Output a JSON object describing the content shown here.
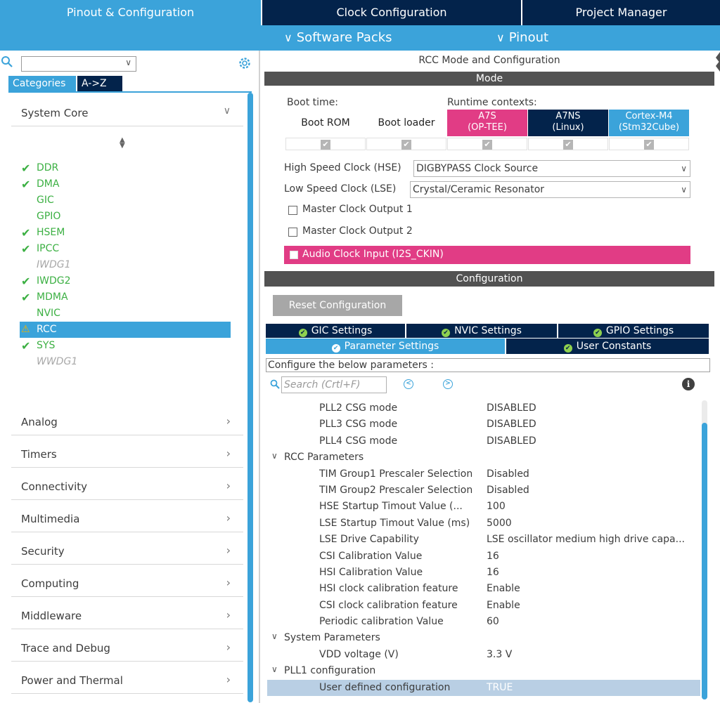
{
  "top_tabs": {
    "pinout": "Pinout & Configuration",
    "clock": "Clock Configuration",
    "project": "Project Manager"
  },
  "sub_menu": {
    "software_packs": "Software Packs",
    "pinout": "Pinout"
  },
  "sidebar": {
    "search": {
      "value": "",
      "placeholder": ""
    },
    "tabs": {
      "categories": "Categories",
      "az": "A->Z"
    },
    "system_core": {
      "label": "System Core",
      "items": [
        {
          "label": "DDR",
          "status": "ok"
        },
        {
          "label": "DMA",
          "status": "ok"
        },
        {
          "label": "GIC",
          "status": "none"
        },
        {
          "label": "GPIO",
          "status": "none"
        },
        {
          "label": "HSEM",
          "status": "ok"
        },
        {
          "label": "IPCC",
          "status": "ok"
        },
        {
          "label": "IWDG1",
          "status": "disabled"
        },
        {
          "label": "IWDG2",
          "status": "ok"
        },
        {
          "label": "MDMA",
          "status": "ok"
        },
        {
          "label": "NVIC",
          "status": "none"
        },
        {
          "label": "RCC",
          "status": "warning",
          "selected": true
        },
        {
          "label": "SYS",
          "status": "ok"
        },
        {
          "label": "WWDG1",
          "status": "disabled"
        }
      ]
    },
    "categories": [
      "Analog",
      "Timers",
      "Connectivity",
      "Multimedia",
      "Security",
      "Computing",
      "Middleware",
      "Trace and Debug",
      "Power and Thermal"
    ]
  },
  "mode": {
    "panel_title": "RCC Mode and Configuration",
    "section": "Mode",
    "boot_time_label": "Boot time:",
    "runtime_label": "Runtime contexts:",
    "contexts": [
      {
        "label": "Boot ROM",
        "sub": "",
        "color": "#ffffff"
      },
      {
        "label": "Boot loader",
        "sub": "",
        "color": "#ffffff"
      },
      {
        "label": "A7S",
        "sub": "(OP-TEE)",
        "color": "#e13c85"
      },
      {
        "label": "A7NS",
        "sub": "(Linux)",
        "color": "#03234b"
      },
      {
        "label": "Cortex-M4",
        "sub": "(Stm32Cube)",
        "color": "#3ba3da"
      }
    ],
    "hse_label": "High Speed Clock (HSE)",
    "hse_value": "DIGBYPASS Clock Source",
    "lse_label": "Low Speed Clock (LSE)",
    "lse_value": "Crystal/Ceramic Resonator",
    "mco1": "Master Clock Output 1",
    "mco2": "Master Clock Output 2",
    "audio": "Audio Clock Input (I2S_CKIN)"
  },
  "configuration": {
    "section": "Configuration",
    "reset_label": "Reset Configuration",
    "tabs_row1": [
      "GIC Settings",
      "NVIC Settings",
      "GPIO Settings"
    ],
    "tabs_row2": [
      "Parameter Settings",
      "User Constants"
    ],
    "hint": "Configure the below parameters :",
    "search_placeholder": "Search (Crtl+F)",
    "params": [
      {
        "type": "item",
        "name": "PLL2 CSG mode",
        "value": "DISABLED"
      },
      {
        "type": "item",
        "name": "PLL3 CSG mode",
        "value": "DISABLED"
      },
      {
        "type": "item",
        "name": "PLL4 CSG mode",
        "value": "DISABLED"
      },
      {
        "type": "group",
        "name": "RCC Parameters",
        "value": ""
      },
      {
        "type": "item",
        "name": "TIM Group1 Prescaler Selection",
        "value": "Disabled"
      },
      {
        "type": "item",
        "name": "TIM Group2 Prescaler Selection",
        "value": "Disabled"
      },
      {
        "type": "item",
        "name": "HSE Startup Timout Value (...",
        "value": "100"
      },
      {
        "type": "item",
        "name": "LSE Startup Timout Value (ms)",
        "value": "5000"
      },
      {
        "type": "item",
        "name": "LSE Drive Capability",
        "value": "LSE oscillator medium high drive capa..."
      },
      {
        "type": "item",
        "name": "CSI Calibration Value",
        "value": "16"
      },
      {
        "type": "item",
        "name": "HSI Calibration Value",
        "value": "16"
      },
      {
        "type": "item",
        "name": "HSI clock calibration feature",
        "value": "Enable"
      },
      {
        "type": "item",
        "name": "CSI clock calibration feature",
        "value": "Enable"
      },
      {
        "type": "item",
        "name": "Periodic calibration Value",
        "value": "60"
      },
      {
        "type": "group",
        "name": "System Parameters",
        "value": ""
      },
      {
        "type": "item",
        "name": "VDD voltage (V)",
        "value": "3.3 V"
      },
      {
        "type": "group",
        "name": "PLL1 configuration",
        "value": ""
      },
      {
        "type": "item",
        "name": "User defined configuration",
        "value": "TRUE",
        "selected": true
      }
    ]
  },
  "colors": {
    "accent": "#3ba3da",
    "navy": "#03234b",
    "magenta": "#e13c85",
    "ok_green": "#3cb043"
  }
}
